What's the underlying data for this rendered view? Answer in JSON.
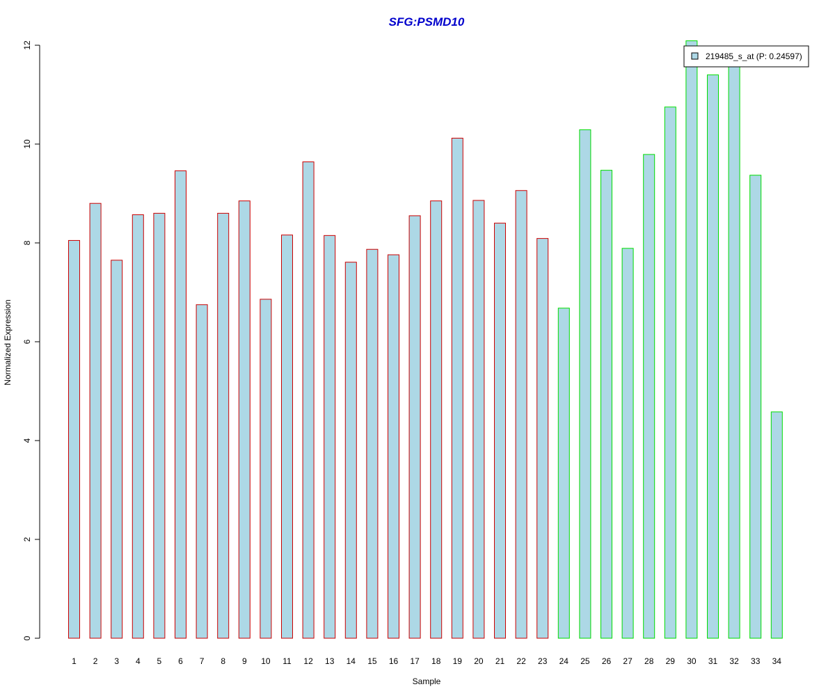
{
  "chart_data": {
    "type": "bar",
    "title": "SFG:PSMD10",
    "xlabel": "Sample",
    "ylabel": "Normalized Expression",
    "ylim": [
      0,
      12
    ],
    "yticks": [
      "0",
      "2",
      "4",
      "6",
      "8",
      "10",
      "12"
    ],
    "categories": [
      "1",
      "2",
      "3",
      "4",
      "5",
      "6",
      "7",
      "8",
      "9",
      "10",
      "11",
      "12",
      "13",
      "14",
      "15",
      "16",
      "17",
      "18",
      "19",
      "20",
      "21",
      "22",
      "23",
      "24",
      "25",
      "26",
      "27",
      "28",
      "29",
      "30",
      "31",
      "32",
      "33",
      "34"
    ],
    "series": [
      {
        "name": "219485_s_at (P: 0.24597)",
        "values": [
          8.05,
          8.8,
          7.65,
          8.57,
          8.6,
          9.46,
          6.75,
          8.6,
          8.85,
          6.86,
          8.16,
          9.64,
          8.15,
          7.61,
          7.87,
          7.76,
          8.55,
          8.85,
          10.12,
          8.86,
          8.4,
          9.06,
          8.09,
          6.68,
          10.29,
          9.47,
          7.89,
          9.79,
          10.75,
          12.09,
          11.4,
          11.62,
          9.37,
          4.58
        ]
      }
    ],
    "group_border_colors": [
      "#cc0000",
      "#cc0000",
      "#cc0000",
      "#cc0000",
      "#cc0000",
      "#cc0000",
      "#cc0000",
      "#cc0000",
      "#cc0000",
      "#cc0000",
      "#cc0000",
      "#cc0000",
      "#cc0000",
      "#cc0000",
      "#cc0000",
      "#cc0000",
      "#cc0000",
      "#cc0000",
      "#cc0000",
      "#cc0000",
      "#cc0000",
      "#cc0000",
      "#cc0000",
      "#00dd00",
      "#00dd00",
      "#00dd00",
      "#00dd00",
      "#00dd00",
      "#00dd00",
      "#00dd00",
      "#00dd00",
      "#00dd00",
      "#00dd00",
      "#00dd00"
    ],
    "bar_fill": "#add8e6",
    "title_color": "#0000cc",
    "legend_position": "top-right",
    "grid": false
  }
}
